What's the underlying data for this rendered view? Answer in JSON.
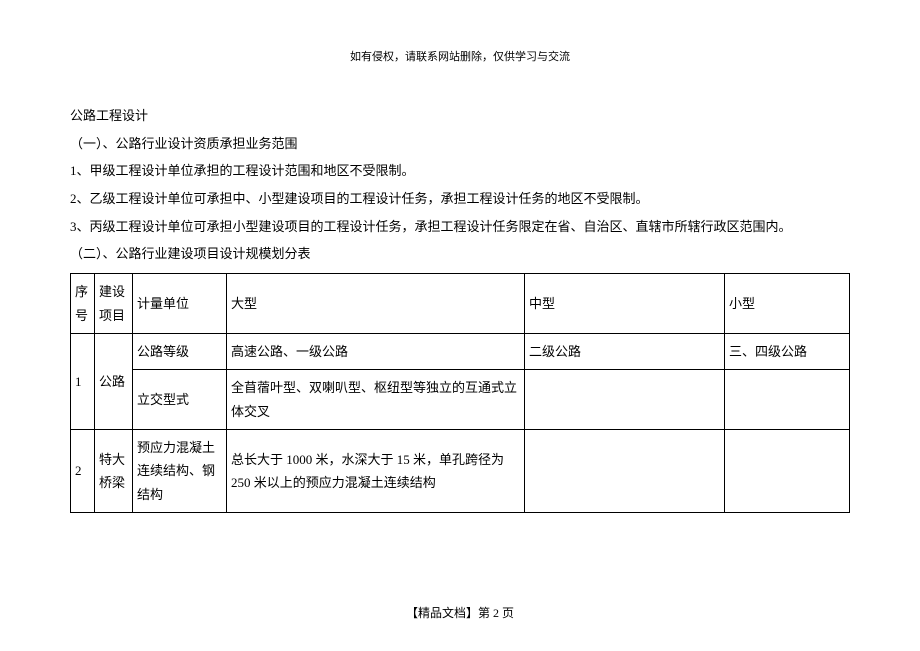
{
  "header_note": "如有侵权，请联系网站删除，仅供学习与交流",
  "title": "公路工程设计",
  "section1_title": "（一）、公路行业设计资质承担业务范围",
  "paragraphs": [
    "1、甲级工程设计单位承担的工程设计范围和地区不受限制。",
    "2、乙级工程设计单位可承担中、小型建设项目的工程设计任务，承担工程设计任务的地区不受限制。",
    "3、丙级工程设计单位可承担小型建设项目的工程设计任务，承担工程设计任务限定在省、自治区、直辖市所辖行政区范围内。"
  ],
  "section2_title": "（二）、公路行业建设项目设计规模划分表",
  "table": {
    "headers": {
      "seq": "序号",
      "project": "建设项目",
      "unit": "计量单位",
      "large": "大型",
      "medium": "中型",
      "small": "小型"
    },
    "row1": {
      "seq": "1",
      "project": "公路",
      "unit_a": "公路等级",
      "large_a": "高速公路、一级公路",
      "medium_a": "二级公路",
      "small_a": "三、四级公路",
      "unit_b": "立交型式",
      "large_b": "全苜蓿叶型、双喇叭型、枢纽型等独立的互通式立体交叉",
      "medium_b": "",
      "small_b": ""
    },
    "row2": {
      "seq": "2",
      "project": "特大桥梁",
      "unit": "预应力混凝土连续结构、钢结构",
      "large": "总长大于 1000 米，水深大于 15 米，单孔跨径为 250 米以上的预应力混凝土连续结构",
      "medium": "",
      "small": ""
    }
  },
  "footer": "【精品文档】第 2 页"
}
